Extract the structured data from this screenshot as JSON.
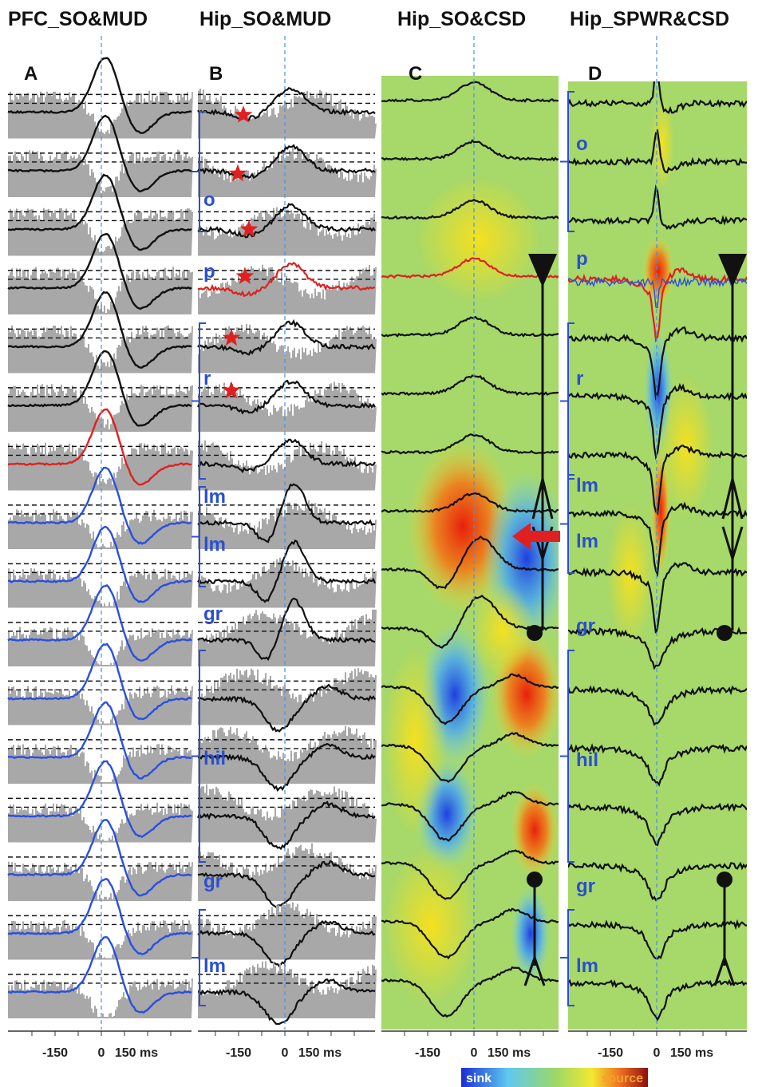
{
  "panels": [
    {
      "title": "PFC_SO&MUD",
      "letter": "A",
      "ticks": [
        "-150",
        "0",
        "150 ms"
      ]
    },
    {
      "title": "Hip_SO&MUD",
      "letter": "B",
      "ticks": [
        "-150",
        "0",
        "150 ms"
      ],
      "layers": [
        "o",
        "p",
        "r",
        "lm",
        "lm",
        "gr",
        "hil",
        "gr",
        "lm"
      ]
    },
    {
      "title": "Hip_SO&CSD",
      "letter": "C",
      "ticks": [
        "-150",
        "0",
        "150 ms"
      ]
    },
    {
      "title": "Hip_SPWR&CSD",
      "letter": "D",
      "ticks": [
        "-150",
        "0",
        "150 ms"
      ],
      "layers": [
        "o",
        "p",
        "r",
        "lm",
        "lm",
        "gr",
        "hil",
        "gr",
        "lm"
      ]
    }
  ],
  "colorbar": {
    "low": "sink",
    "high": "source"
  }
}
